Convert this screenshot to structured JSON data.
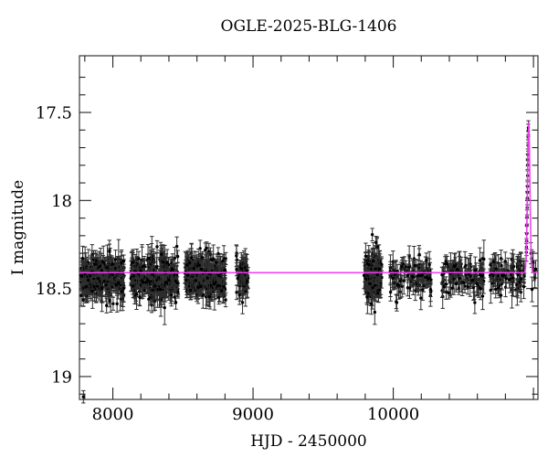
{
  "chart_data": {
    "type": "scatter",
    "title": "OGLE-2025-BLG-1406",
    "xlabel": "HJD - 2450000",
    "ylabel": "I magnitude",
    "xlim": [
      7762,
      11032
    ],
    "ylim": [
      19.13,
      17.178
    ],
    "y_axis_note": "magnitude axis: brighter (smaller) values at top",
    "grid": false,
    "legend": null,
    "x_major_ticks": [
      8000,
      9000,
      10000,
      11000
    ],
    "x_major_labels": [
      "8000",
      "9000",
      "10000",
      ""
    ],
    "x_minor_tick_step": 200,
    "y_major_ticks": [
      17.5,
      18.0,
      18.5,
      19.0
    ],
    "y_major_labels": [
      "17.5",
      "18",
      "18.5",
      "19"
    ],
    "y_minor_ticks": [
      17.3,
      17.4,
      17.6,
      17.7,
      17.8,
      17.9,
      18.1,
      18.2,
      18.3,
      18.4,
      18.6,
      18.7,
      18.8,
      18.9,
      19.1
    ],
    "marker_color": "#000000",
    "errorbar_color": "#2e2e2e",
    "frame_color": "#444444",
    "plot_bg": "#ffffff",
    "model_curve": {
      "description": "microlensing model: flat baseline with symmetric peak",
      "color": "#f23cf2",
      "baseline_mag": 18.41,
      "t0": 10966,
      "peak_mag": 17.55,
      "width_days": 12
    },
    "baseline_seasons": [
      {
        "name": "season-1",
        "t_range": [
          7772,
          8080
        ],
        "n_points": 260,
        "mean_mag": 18.435,
        "scatter_mag": 0.058
      },
      {
        "name": "season-2",
        "t_range": [
          8128,
          8470
        ],
        "n_points": 280,
        "mean_mag": 18.435,
        "scatter_mag": 0.058
      },
      {
        "name": "season-3",
        "t_range": [
          8512,
          8810
        ],
        "n_points": 260,
        "mean_mag": 18.43,
        "scatter_mag": 0.058
      },
      {
        "name": "season-4",
        "t_range": [
          8878,
          8965
        ],
        "n_points": 70,
        "mean_mag": 18.43,
        "scatter_mag": 0.05
      },
      {
        "name": "season-5",
        "t_range": [
          9790,
          9918
        ],
        "n_points": 130,
        "mean_mag": 18.42,
        "scatter_mag": 0.078
      },
      {
        "name": "season-6",
        "t_range": [
          9978,
          10275
        ],
        "n_points": 100,
        "mean_mag": 18.43,
        "scatter_mag": 0.05
      },
      {
        "name": "season-7",
        "t_range": [
          10344,
          10648
        ],
        "n_points": 110,
        "mean_mag": 18.43,
        "scatter_mag": 0.05
      },
      {
        "name": "season-8",
        "t_range": [
          10682,
          10935
        ],
        "n_points": 95,
        "mean_mag": 18.42,
        "scatter_mag": 0.05
      }
    ],
    "event_points": [
      [
        10949.0,
        18.294,
        0.05
      ],
      [
        10950.0,
        18.265,
        0.048
      ],
      [
        10951.0,
        18.23,
        0.046
      ],
      [
        10952.0,
        18.189,
        0.044
      ],
      [
        10953.0,
        18.143,
        0.042
      ],
      [
        10954.0,
        18.094,
        0.04
      ],
      [
        10955.0,
        18.041,
        0.04
      ],
      [
        10956.0,
        17.986,
        0.038
      ],
      [
        10956.5,
        17.955,
        0.038
      ],
      [
        10957.0,
        17.92,
        0.036
      ],
      [
        10958.0,
        17.859,
        0.035
      ],
      [
        10959.0,
        17.798,
        0.034
      ],
      [
        10959.5,
        17.77,
        0.034
      ],
      [
        10960.0,
        17.74,
        0.033
      ],
      [
        10961.0,
        17.687,
        0.032
      ],
      [
        10962.0,
        17.64,
        0.032
      ],
      [
        10963.0,
        17.602,
        0.035
      ],
      [
        10963.5,
        17.587,
        0.04
      ]
    ],
    "post_peak_points": [
      [
        10982,
        18.3,
        0.06
      ],
      [
        10987,
        18.33,
        0.05
      ],
      [
        10990,
        18.505,
        0.07
      ],
      [
        10997,
        18.35,
        0.06
      ],
      [
        11004,
        18.405,
        0.05
      ],
      [
        11010,
        18.44,
        0.055
      ],
      [
        11016,
        18.39,
        0.05
      ]
    ],
    "outlier_points": [
      [
        7790,
        19.115,
        0.035
      ]
    ],
    "render_seed": 20251406
  }
}
